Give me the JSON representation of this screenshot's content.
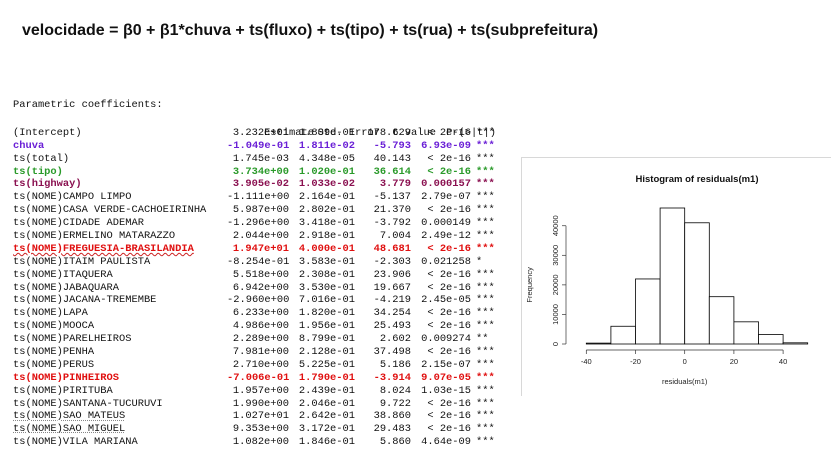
{
  "title": "velocidade = β0 + β1*chuva + ts(fluxo) + ts(tipo) + ts(rua) + ts(subprefeitura)",
  "table": {
    "caption": "Parametric coefficients:",
    "headers": [
      "",
      "Estimate",
      "Std. Error",
      "t value",
      "Pr(>|t|)",
      ""
    ],
    "rows": [
      {
        "term": "(Intercept)",
        "est": "3.232e+01",
        "se": "1.809e-01",
        "t": "178.629",
        "p": "< 2e-16",
        "sig": "***",
        "color": "#111111",
        "bold": false,
        "mark": ""
      },
      {
        "term": "chuva",
        "est": "-1.049e-01",
        "se": "1.811e-02",
        "t": "-5.793",
        "p": "6.93e-09",
        "sig": "***",
        "color": "#6a1fd6",
        "bold": true,
        "mark": ""
      },
      {
        "term": "ts(total)",
        "est": "1.745e-03",
        "se": "4.348e-05",
        "t": "40.143",
        "p": "< 2e-16",
        "sig": "***",
        "color": "#111111",
        "bold": false,
        "mark": ""
      },
      {
        "term": "ts(tipo)",
        "est": "3.734e+00",
        "se": "1.020e-01",
        "t": "36.614",
        "p": "< 2e-16",
        "sig": "***",
        "color": "#2a9a2a",
        "bold": true,
        "mark": ""
      },
      {
        "term": "ts(highway)",
        "est": "3.905e-02",
        "se": "1.033e-02",
        "t": "3.779",
        "p": "0.000157",
        "sig": "***",
        "color": "#8a1050",
        "bold": true,
        "mark": ""
      },
      {
        "term": "ts(NOME)CAMPO LIMPO",
        "est": "-1.111e+00",
        "se": "2.164e-01",
        "t": "-5.137",
        "p": "2.79e-07",
        "sig": "***",
        "color": "#111111",
        "bold": false,
        "mark": ""
      },
      {
        "term": "ts(NOME)CASA VERDE-CACHOEIRINHA",
        "est": "5.987e+00",
        "se": "2.802e-01",
        "t": "21.370",
        "p": "< 2e-16",
        "sig": "***",
        "color": "#111111",
        "bold": false,
        "mark": ""
      },
      {
        "term": "ts(NOME)CIDADE ADEMAR",
        "est": "-1.296e+00",
        "se": "3.418e-01",
        "t": "-3.792",
        "p": "0.000149",
        "sig": "***",
        "color": "#111111",
        "bold": false,
        "mark": ""
      },
      {
        "term": "ts(NOME)ERMELINO MATARAZZO",
        "est": "2.044e+00",
        "se": "2.918e-01",
        "t": "7.004",
        "p": "2.49e-12",
        "sig": "***",
        "color": "#111111",
        "bold": false,
        "mark": ""
      },
      {
        "term": "ts(NOME)FREGUESIA-BRASILANDIA",
        "est": "1.947e+01",
        "se": "4.000e-01",
        "t": "48.681",
        "p": "< 2e-16",
        "sig": "***",
        "color": "#e01010",
        "bold": true,
        "mark": "wavy"
      },
      {
        "term": "ts(NOME)ITAIM PAULISTA",
        "est": "-8.254e-01",
        "se": "3.583e-01",
        "t": "-2.303",
        "p": "0.021258",
        "sig": "*",
        "color": "#111111",
        "bold": false,
        "mark": ""
      },
      {
        "term": "ts(NOME)ITAQUERA",
        "est": "5.518e+00",
        "se": "2.308e-01",
        "t": "23.906",
        "p": "< 2e-16",
        "sig": "***",
        "color": "#111111",
        "bold": false,
        "mark": ""
      },
      {
        "term": "ts(NOME)JABAQUARA",
        "est": "6.942e+00",
        "se": "3.530e-01",
        "t": "19.667",
        "p": "< 2e-16",
        "sig": "***",
        "color": "#111111",
        "bold": false,
        "mark": ""
      },
      {
        "term": "ts(NOME)JACANA-TREMEMBE",
        "est": "-2.960e+00",
        "se": "7.016e-01",
        "t": "-4.219",
        "p": "2.45e-05",
        "sig": "***",
        "color": "#111111",
        "bold": false,
        "mark": ""
      },
      {
        "term": "ts(NOME)LAPA",
        "est": "6.233e+00",
        "se": "1.820e-01",
        "t": "34.254",
        "p": "< 2e-16",
        "sig": "***",
        "color": "#111111",
        "bold": false,
        "mark": ""
      },
      {
        "term": "ts(NOME)MOOCA",
        "est": "4.986e+00",
        "se": "1.956e-01",
        "t": "25.493",
        "p": "< 2e-16",
        "sig": "***",
        "color": "#111111",
        "bold": false,
        "mark": ""
      },
      {
        "term": "ts(NOME)PARELHEIROS",
        "est": "2.289e+00",
        "se": "8.799e-01",
        "t": "2.602",
        "p": "0.009274",
        "sig": "**",
        "color": "#111111",
        "bold": false,
        "mark": ""
      },
      {
        "term": "ts(NOME)PENHA",
        "est": "7.981e+00",
        "se": "2.128e-01",
        "t": "37.498",
        "p": "< 2e-16",
        "sig": "***",
        "color": "#111111",
        "bold": false,
        "mark": ""
      },
      {
        "term": "ts(NOME)PERUS",
        "est": "2.710e+00",
        "se": "5.225e-01",
        "t": "5.186",
        "p": "2.15e-07",
        "sig": "***",
        "color": "#111111",
        "bold": false,
        "mark": ""
      },
      {
        "term": "ts(NOME)PINHEIROS",
        "est": "-7.006e-01",
        "se": "1.790e-01",
        "t": "-3.914",
        "p": "9.07e-05",
        "sig": "***",
        "color": "#e01010",
        "bold": true,
        "mark": ""
      },
      {
        "term": "ts(NOME)PIRITUBA",
        "est": "1.957e+00",
        "se": "2.439e-01",
        "t": "8.024",
        "p": "1.03e-15",
        "sig": "***",
        "color": "#111111",
        "bold": false,
        "mark": ""
      },
      {
        "term": "ts(NOME)SANTANA-TUCURUVI",
        "est": "1.990e+00",
        "se": "2.046e-01",
        "t": "9.722",
        "p": "< 2e-16",
        "sig": "***",
        "color": "#111111",
        "bold": false,
        "mark": ""
      },
      {
        "term": "ts(NOME)SAO MATEUS",
        "est": "1.027e+01",
        "se": "2.642e-01",
        "t": "38.860",
        "p": "< 2e-16",
        "sig": "***",
        "color": "#111111",
        "bold": false,
        "mark": "dotted"
      },
      {
        "term": "ts(NOME)SAO MIGUEL",
        "est": "9.353e+00",
        "se": "3.172e-01",
        "t": "29.483",
        "p": "< 2e-16",
        "sig": "***",
        "color": "#111111",
        "bold": false,
        "mark": "dotted"
      },
      {
        "term": "ts(NOME)VILA MARIANA",
        "est": "1.082e+00",
        "se": "1.846e-01",
        "t": "5.860",
        "p": "4.64e-09",
        "sig": "***",
        "color": "#111111",
        "bold": false,
        "mark": ""
      }
    ]
  },
  "chart_data": {
    "type": "bar",
    "title": "Histogram of residuals(m1)",
    "xlabel": "residuals(m1)",
    "ylabel": "Frequency",
    "bin_edges": [
      -40,
      -30,
      -20,
      -10,
      0,
      10,
      20,
      30,
      40,
      50
    ],
    "values": [
      300,
      6000,
      22000,
      46000,
      41000,
      16000,
      7500,
      3200,
      400
    ],
    "xticks": [
      -40,
      -20,
      0,
      20,
      40
    ],
    "yticks": [
      0,
      10000,
      20000,
      30000,
      40000
    ],
    "xlim": [
      -45,
      55
    ],
    "ylim": [
      0,
      46000
    ],
    "grid": false,
    "legend": "none",
    "bar_fill": "#ffffff",
    "bar_stroke": "#000000"
  }
}
